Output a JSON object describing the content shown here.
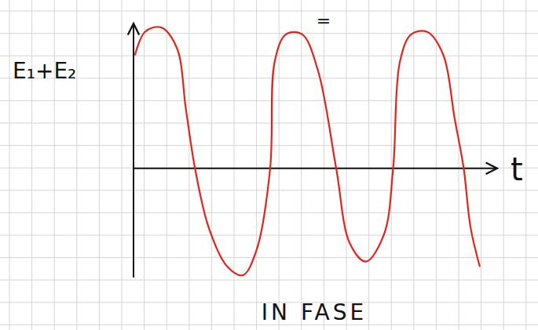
{
  "chart_data": {
    "type": "line",
    "x_label": "t",
    "y_label": "E₁+E₂",
    "annotations": [
      "=",
      "IN FASE"
    ],
    "x": [
      0.07,
      0.5,
      1.2,
      1.9,
      2.3,
      2.7,
      3.3,
      4.1,
      4.8,
      5.4,
      6.0,
      6.2,
      6.7,
      7.4,
      8.1,
      8.9,
      9.5,
      10.2,
      11.0,
      11.4,
      11.7,
      12.2,
      12.9,
      13.6,
      14.1,
      14.5,
      14.8,
      15.2
    ],
    "values": [
      5.0,
      6.0,
      6.2,
      5.3,
      2.6,
      0,
      -2.6,
      -4.3,
      -4.7,
      -3.6,
      0,
      4.7,
      5.9,
      5.9,
      4.3,
      0,
      -3.3,
      -4.1,
      -2.9,
      0,
      4.7,
      5.9,
      6.0,
      5.0,
      2.2,
      0,
      -2.6,
      -4.3
    ],
    "color": "#e0241c",
    "xlim": [
      0,
      15.9
    ],
    "ylim": [
      -4.8,
      6.3
    ],
    "tick_labels": false
  }
}
